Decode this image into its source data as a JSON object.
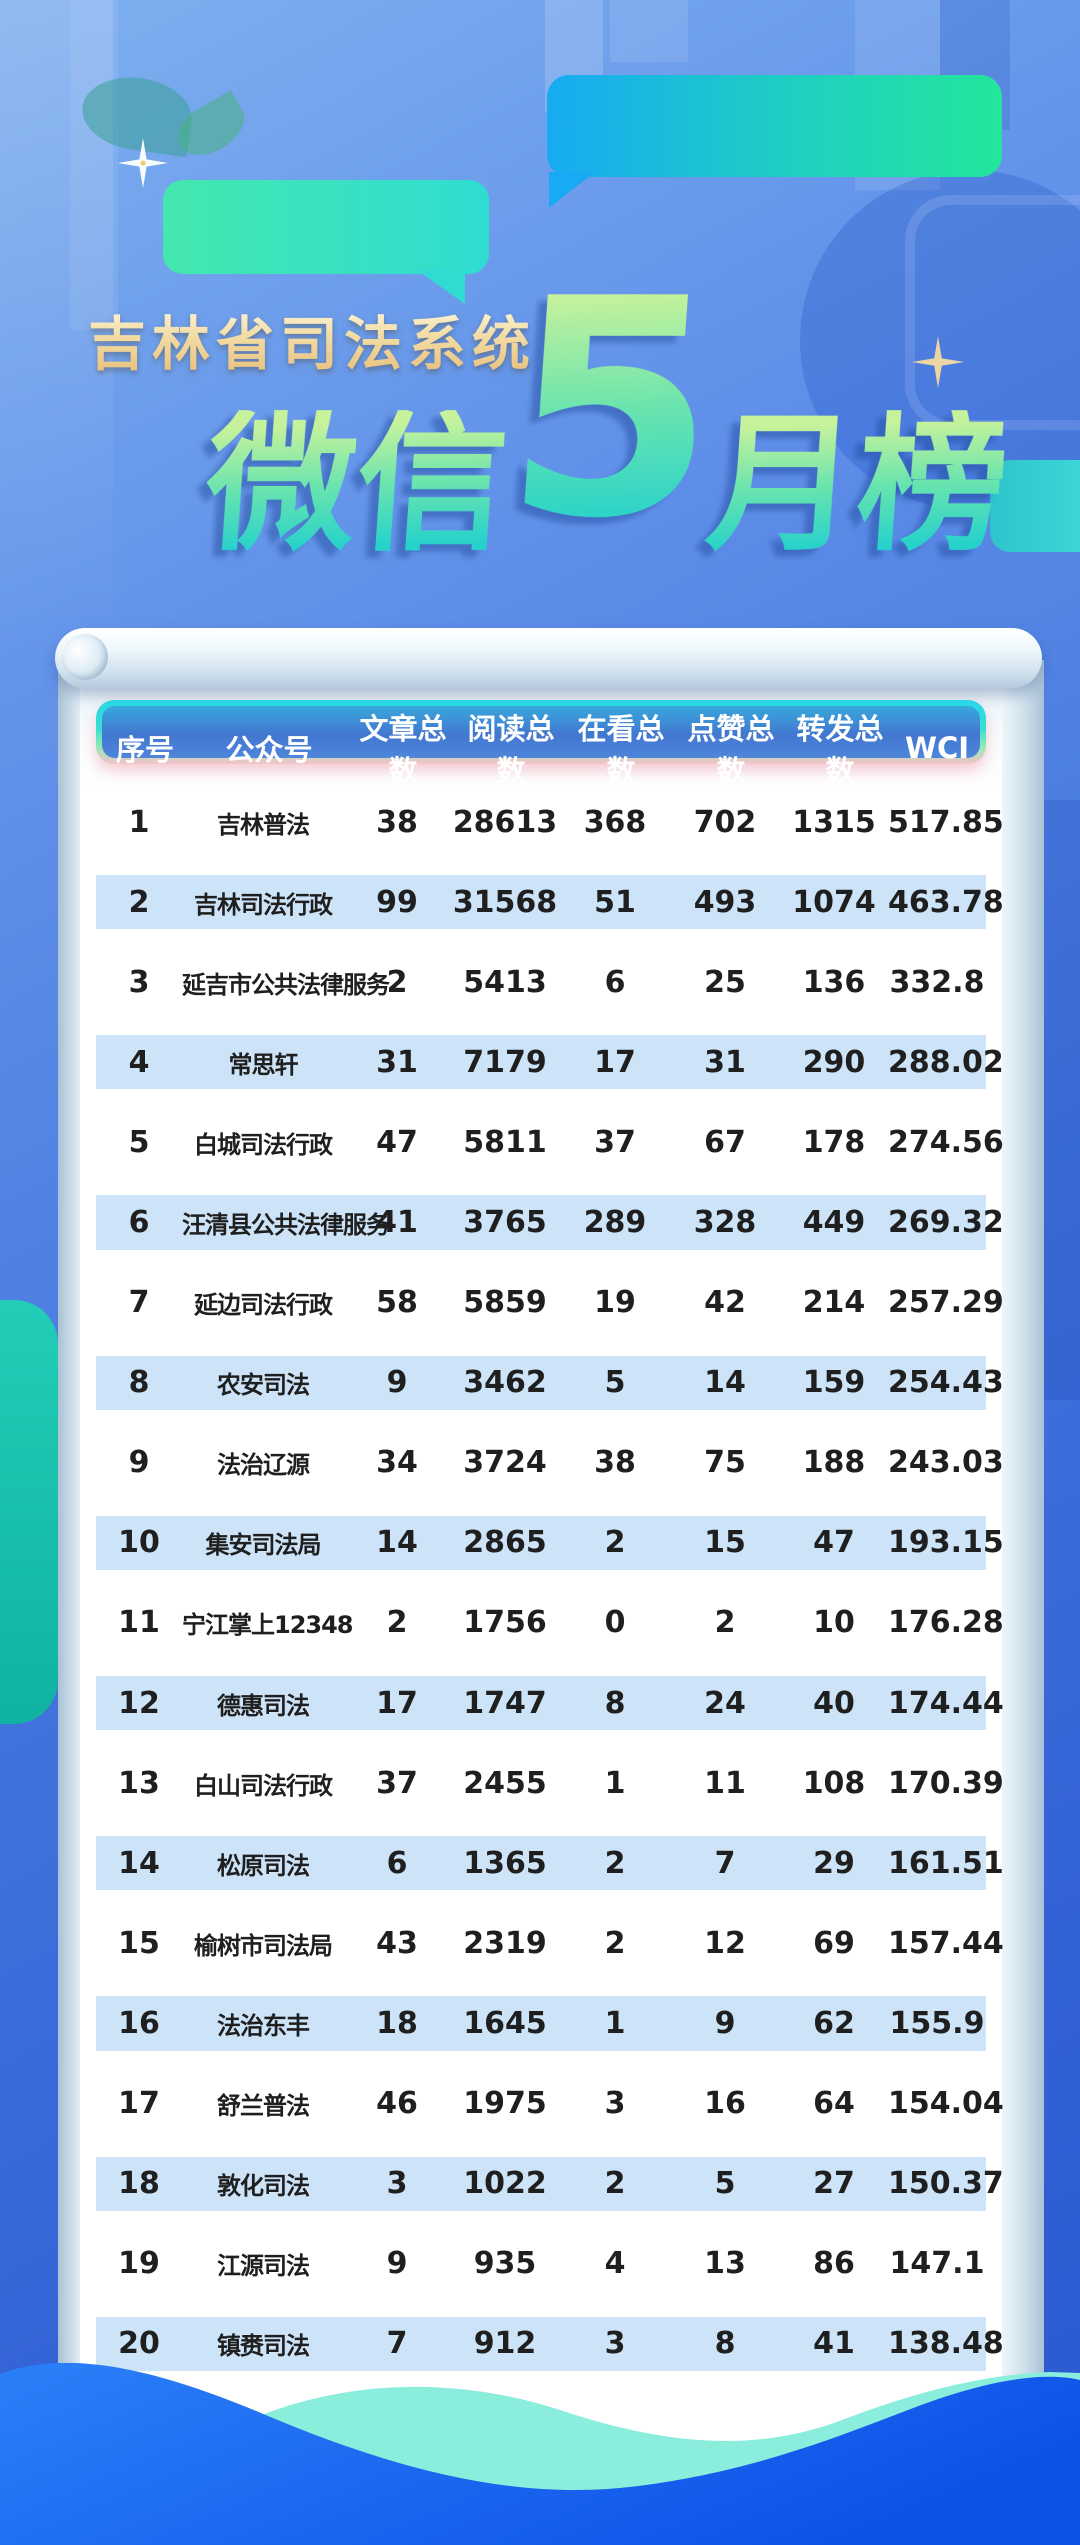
{
  "title": {
    "subtitle": "吉林省司法系统",
    "main_prefix": "微信",
    "main_number": "5",
    "main_suffix": "月榜"
  },
  "colors": {
    "background_top": "#7fb0ef",
    "background_bottom": "#2a58d0",
    "subtitle_gold": "#f3dda6",
    "title_green_top": "#c6f29c",
    "title_green_bottom": "#27d2cb",
    "header_bar_blue": "#4277d0",
    "header_ring_cyan": "#29d6e8",
    "header_ring_pink": "#f5c3c8",
    "row_highlight": "#cce3f8",
    "paper_white": "#ffffff",
    "wave_blue": "#1b66f0",
    "wave_teal": "#8beedd",
    "bubble_cyan": "#18aaf2",
    "bubble_green": "#23e69c",
    "teal_accent": "#22cdb7"
  },
  "chart_data": {
    "type": "table",
    "title": "吉林省司法系统 微信5月榜",
    "columns": [
      "序号",
      "公众号",
      "文章总数",
      "阅读总数",
      "在看总数",
      "点赞总数",
      "转发总数",
      "WCI"
    ],
    "rows": [
      [
        "1",
        "吉林普法",
        "38",
        "28613",
        "368",
        "702",
        "1315",
        "517.85"
      ],
      [
        "2",
        "吉林司法行政",
        "99",
        "31568",
        "51",
        "493",
        "1074",
        "463.78"
      ],
      [
        "3",
        "延吉市公共法律服务",
        "2",
        "5413",
        "6",
        "25",
        "136",
        "332.8"
      ],
      [
        "4",
        "常思轩",
        "31",
        "7179",
        "17",
        "31",
        "290",
        "288.02"
      ],
      [
        "5",
        "白城司法行政",
        "47",
        "5811",
        "37",
        "67",
        "178",
        "274.56"
      ],
      [
        "6",
        "汪清县公共法律服务",
        "41",
        "3765",
        "289",
        "328",
        "449",
        "269.32"
      ],
      [
        "7",
        "延边司法行政",
        "58",
        "5859",
        "19",
        "42",
        "214",
        "257.29"
      ],
      [
        "8",
        "农安司法",
        "9",
        "3462",
        "5",
        "14",
        "159",
        "254.43"
      ],
      [
        "9",
        "法治辽源",
        "34",
        "3724",
        "38",
        "75",
        "188",
        "243.03"
      ],
      [
        "10",
        "集安司法局",
        "14",
        "2865",
        "2",
        "15",
        "47",
        "193.15"
      ],
      [
        "11",
        "宁江掌上12348",
        "2",
        "1756",
        "0",
        "2",
        "10",
        "176.28"
      ],
      [
        "12",
        "德惠司法",
        "17",
        "1747",
        "8",
        "24",
        "40",
        "174.44"
      ],
      [
        "13",
        "白山司法行政",
        "37",
        "2455",
        "1",
        "11",
        "108",
        "170.39"
      ],
      [
        "14",
        "松原司法",
        "6",
        "1365",
        "2",
        "7",
        "29",
        "161.51"
      ],
      [
        "15",
        "榆树市司法局",
        "43",
        "2319",
        "2",
        "12",
        "69",
        "157.44"
      ],
      [
        "16",
        "法治东丰",
        "18",
        "1645",
        "1",
        "9",
        "62",
        "155.9"
      ],
      [
        "17",
        "舒兰普法",
        "46",
        "1975",
        "3",
        "16",
        "64",
        "154.04"
      ],
      [
        "18",
        "敦化司法",
        "3",
        "1022",
        "2",
        "5",
        "27",
        "150.37"
      ],
      [
        "19",
        "江源司法",
        "9",
        "935",
        "4",
        "13",
        "86",
        "147.1"
      ],
      [
        "20",
        "镇赉司法",
        "7",
        "912",
        "3",
        "8",
        "41",
        "138.48"
      ]
    ]
  }
}
